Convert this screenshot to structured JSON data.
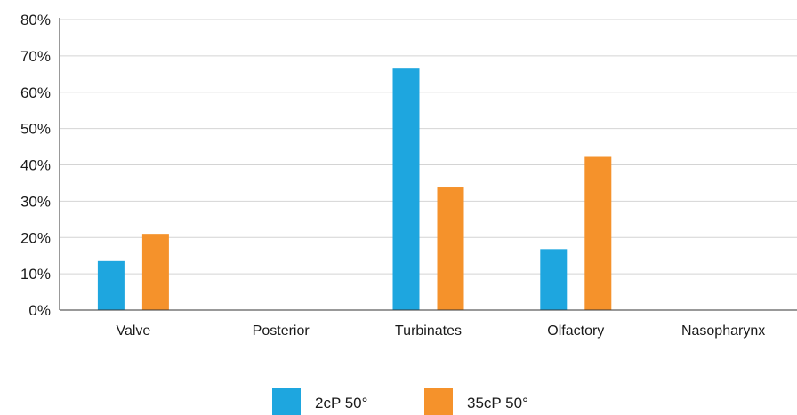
{
  "chart_data": {
    "type": "bar",
    "title": "",
    "xlabel": "",
    "ylabel": "",
    "categories": [
      "Valve",
      "Posterior",
      "Turbinates",
      "Olfactory",
      "Nasopharynx"
    ],
    "series": [
      {
        "name": "2cP 50°",
        "values": [
          13.5,
          0,
          66.5,
          16.8,
          0
        ],
        "color": "#1ea6df"
      },
      {
        "name": "35cP 50°",
        "values": [
          21,
          0,
          34,
          42.2,
          0
        ],
        "color": "#f5922b"
      }
    ],
    "ylim": [
      0,
      80
    ],
    "yticks": [
      0,
      10,
      20,
      30,
      40,
      50,
      60,
      70,
      80
    ],
    "ytick_format": "percent",
    "grid": true,
    "legend_position": "bottom-center"
  }
}
